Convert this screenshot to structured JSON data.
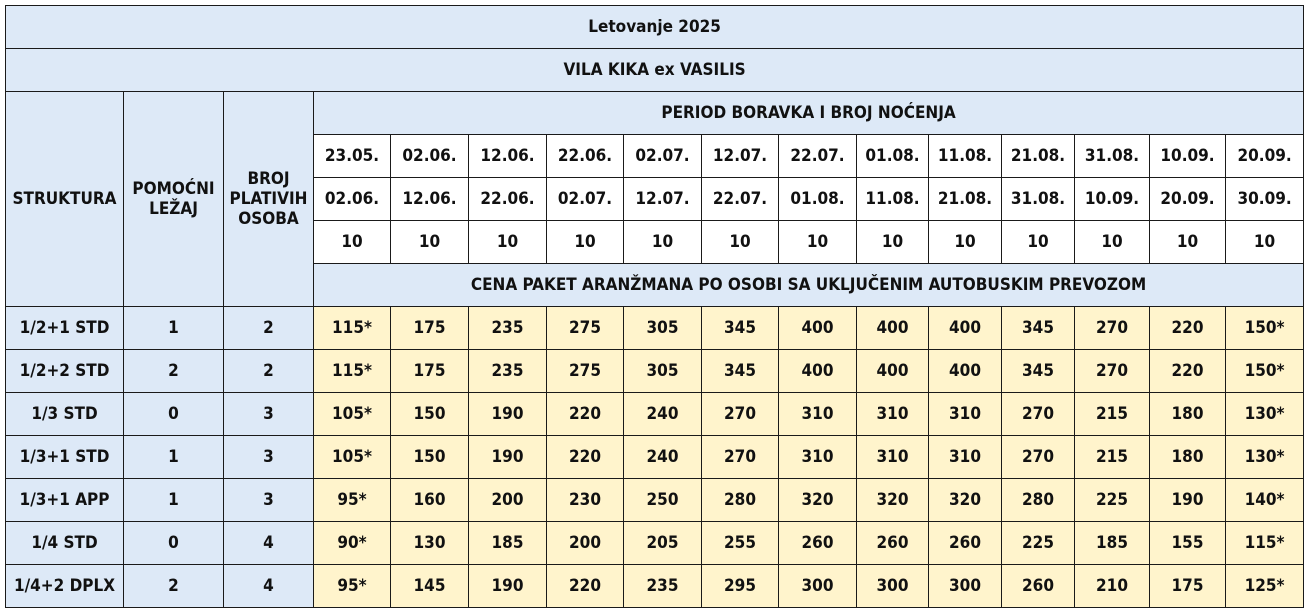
{
  "title": "Letovanje 2025",
  "hotel": "VILA KIKA ex VASILIS",
  "headers": {
    "struktura": "STRUKTURA",
    "pomocni": "POMOĆNI\nLEŽAJ",
    "broj": "BROJ\nPLATIVIH\nOSOBA",
    "period": "PERIOD BORAVKA I BROJ NOĆENJA",
    "cena": "CENA PAKET ARANŽMANA PO OSOBI SA UKLJUČENIM AUTOBUSKIM PREVOZOM"
  },
  "periods_from": [
    "23.05.",
    "02.06.",
    "12.06.",
    "22.06.",
    "02.07.",
    "12.07.",
    "22.07.",
    "01.08.",
    "11.08.",
    "21.08.",
    "31.08.",
    "10.09.",
    "20.09."
  ],
  "periods_to": [
    "02.06.",
    "12.06.",
    "22.06.",
    "02.07.",
    "12.07.",
    "22.07.",
    "01.08.",
    "11.08.",
    "21.08.",
    "31.08.",
    "10.09.",
    "20.09.",
    "30.09."
  ],
  "nights": [
    "10",
    "10",
    "10",
    "10",
    "10",
    "10",
    "10",
    "10",
    "10",
    "10",
    "10",
    "10",
    "10"
  ],
  "rows": [
    {
      "struktura": "1/2+1 STD",
      "pomocni": "1",
      "broj": "2",
      "prices": [
        "115*",
        "175",
        "235",
        "275",
        "305",
        "345",
        "400",
        "400",
        "400",
        "345",
        "270",
        "220",
        "150*"
      ]
    },
    {
      "struktura": "1/2+2 STD",
      "pomocni": "2",
      "broj": "2",
      "prices": [
        "115*",
        "175",
        "235",
        "275",
        "305",
        "345",
        "400",
        "400",
        "400",
        "345",
        "270",
        "220",
        "150*"
      ]
    },
    {
      "struktura": "1/3 STD",
      "pomocni": "0",
      "broj": "3",
      "prices": [
        "105*",
        "150",
        "190",
        "220",
        "240",
        "270",
        "310",
        "310",
        "310",
        "270",
        "215",
        "180",
        "130*"
      ]
    },
    {
      "struktura": "1/3+1 STD",
      "pomocni": "1",
      "broj": "3",
      "prices": [
        "105*",
        "150",
        "190",
        "220",
        "240",
        "270",
        "310",
        "310",
        "310",
        "270",
        "215",
        "180",
        "130*"
      ]
    },
    {
      "struktura": "1/3+1 APP",
      "pomocni": "1",
      "broj": "3",
      "prices": [
        "95*",
        "160",
        "200",
        "230",
        "250",
        "280",
        "320",
        "320",
        "320",
        "280",
        "225",
        "190",
        "140*"
      ]
    },
    {
      "struktura": "1/4 STD",
      "pomocni": "0",
      "broj": "4",
      "prices": [
        "90*",
        "130",
        "185",
        "200",
        "205",
        "255",
        "260",
        "260",
        "260",
        "225",
        "185",
        "155",
        "115*"
      ]
    },
    {
      "struktura": "1/4+2 DPLX",
      "pomocni": "2",
      "broj": "4",
      "prices": [
        "95*",
        "145",
        "190",
        "220",
        "235",
        "295",
        "300",
        "300",
        "300",
        "260",
        "210",
        "175",
        "125*"
      ]
    }
  ]
}
